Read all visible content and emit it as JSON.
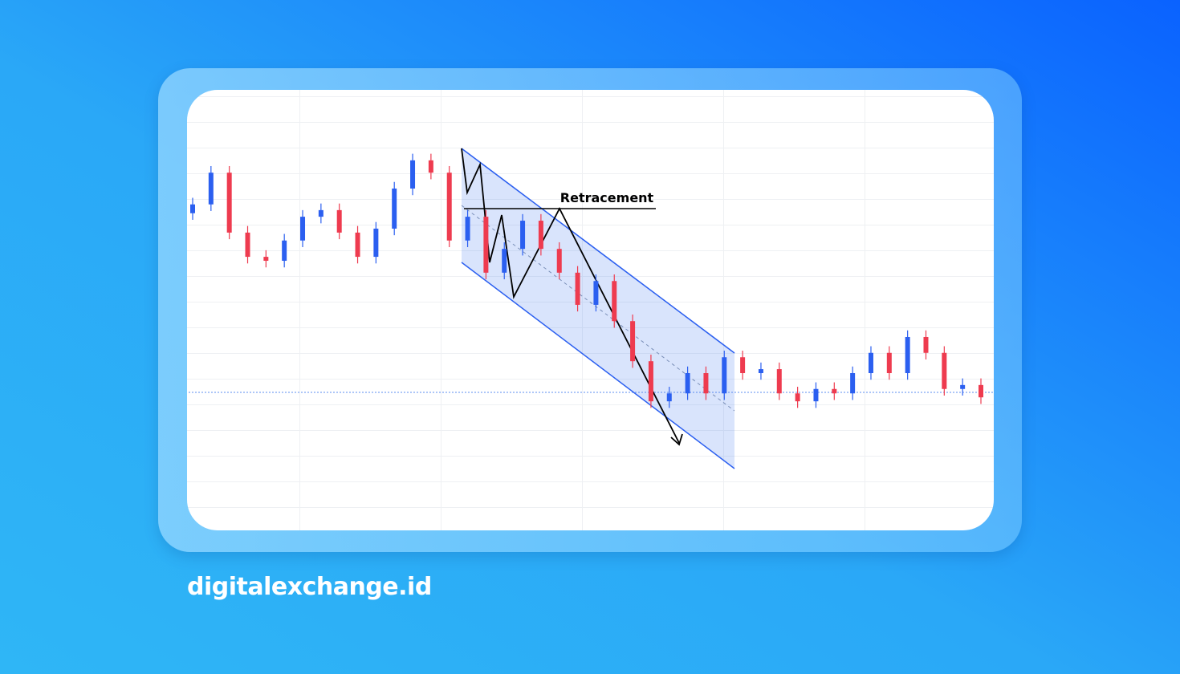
{
  "chart_data": {
    "type": "candlestick",
    "annotation": "Retracement",
    "up_color": "#2b5ff0",
    "down_color": "#ee3b4f",
    "ylim": [
      0,
      100
    ],
    "open": [
      72.0,
      74.0,
      81.2,
      67.6,
      62.1,
      61.2,
      65.8,
      71.2,
      72.7,
      67.6,
      62.1,
      68.5,
      77.6,
      84.0,
      81.2,
      65.8,
      71.2,
      58.5,
      63.9,
      70.3,
      63.9,
      58.5,
      51.2,
      56.6,
      47.5,
      38.4,
      29.3,
      31.1,
      35.7,
      31.1,
      39.3,
      35.7,
      36.6,
      31.1,
      29.3,
      32.1,
      31.1,
      35.7,
      40.3,
      35.7,
      43.9,
      40.3,
      32.1,
      33.0
    ],
    "high": [
      75.5,
      82.7,
      82.7,
      69.1,
      63.6,
      67.3,
      72.7,
      74.2,
      74.2,
      69.1,
      70.0,
      79.1,
      85.5,
      85.5,
      82.7,
      72.7,
      72.7,
      65.4,
      71.8,
      71.8,
      65.4,
      60.0,
      58.1,
      58.1,
      49.0,
      39.9,
      32.6,
      37.2,
      37.2,
      40.8,
      40.8,
      38.1,
      38.1,
      32.6,
      33.6,
      33.6,
      37.2,
      41.8,
      41.8,
      45.4,
      45.4,
      41.8,
      34.5,
      34.5
    ],
    "low": [
      70.5,
      72.5,
      66.1,
      60.6,
      59.7,
      59.7,
      64.3,
      69.7,
      66.1,
      60.6,
      60.6,
      67.0,
      76.1,
      79.7,
      64.3,
      64.3,
      57.0,
      57.0,
      62.4,
      62.4,
      57.0,
      49.7,
      49.7,
      46.0,
      36.9,
      27.8,
      27.8,
      29.6,
      29.6,
      29.6,
      34.2,
      34.2,
      29.6,
      27.8,
      27.8,
      29.6,
      29.6,
      34.2,
      34.2,
      34.2,
      38.8,
      30.6,
      30.6,
      28.7
    ],
    "close": [
      74.0,
      81.2,
      67.6,
      62.1,
      61.2,
      65.8,
      71.2,
      72.7,
      67.6,
      62.1,
      68.5,
      77.6,
      84.0,
      81.2,
      65.8,
      71.2,
      58.5,
      63.9,
      70.3,
      63.9,
      58.5,
      51.2,
      56.6,
      47.5,
      38.4,
      29.3,
      31.1,
      35.7,
      31.1,
      39.3,
      35.7,
      36.6,
      31.1,
      29.3,
      32.1,
      31.1,
      35.7,
      40.3,
      35.7,
      43.9,
      40.3,
      32.1,
      33.0,
      30.2
    ]
  },
  "footer": {
    "brand": "digitalexchange.id"
  }
}
